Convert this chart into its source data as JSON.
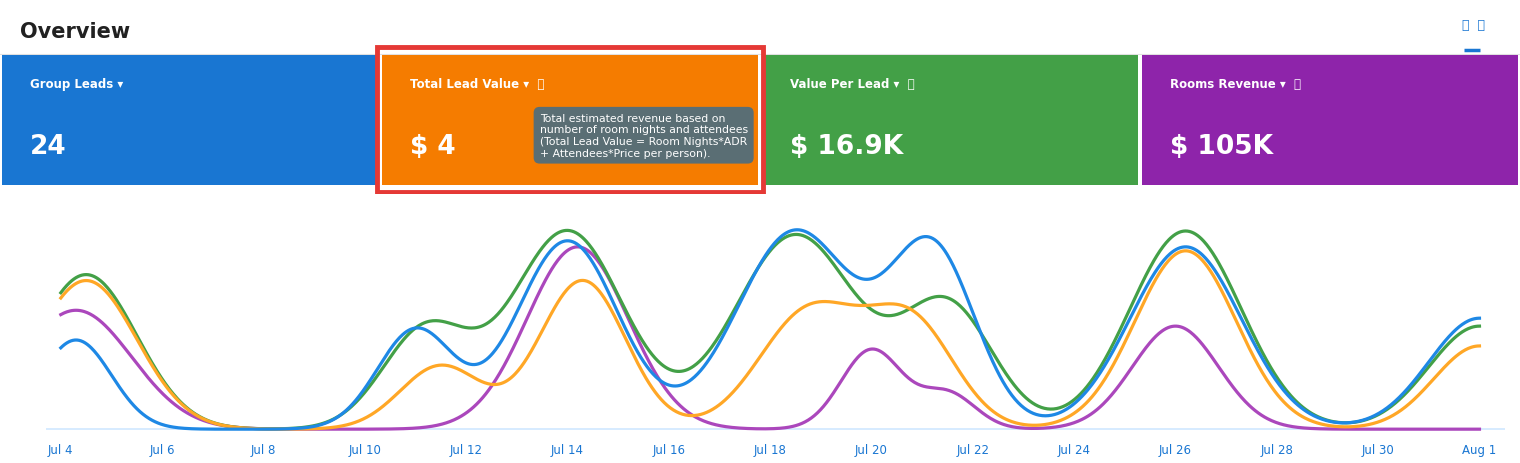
{
  "title": "Overview",
  "background_color": "#ffffff",
  "cards": [
    {
      "label": "Group Leads ▾",
      "value": "24",
      "bg": "#1976D2",
      "text_color": "#ffffff"
    },
    {
      "label": "Total Lead Value ▾  ⓘ",
      "value": "$ 4",
      "bg": "#F57C00",
      "text_color": "#ffffff",
      "highlighted": true
    },
    {
      "label": "Value Per Lead ▾  ⓘ",
      "value": "$ 16.9K",
      "bg": "#43A047",
      "text_color": "#ffffff"
    },
    {
      "label": "Rooms Revenue ▾  ⓘ",
      "value": "$ 105K",
      "bg": "#8E24AA",
      "text_color": "#ffffff"
    }
  ],
  "tooltip": {
    "text": "Total estimated revenue based on\nnumber of room nights and attendees\n(Total Lead Value = Room Nights*ADR\n+ Attendees*Price per person).",
    "bg": "#546E7A",
    "text_color": "#ffffff"
  },
  "x_labels": [
    "Jul 4",
    "Jul 6",
    "Jul 8",
    "Jul 10",
    "Jul 12",
    "Jul 14",
    "Jul 16",
    "Jul 18",
    "Jul 20",
    "Jul 22",
    "Jul 24",
    "Jul 26",
    "Jul 28",
    "Jul 30",
    "Aug 1"
  ],
  "x_positions": [
    0,
    2,
    4,
    6,
    8,
    10,
    12,
    14,
    16,
    18,
    20,
    22,
    24,
    26,
    28
  ],
  "line_colors": [
    "#1E88E5",
    "#FFA726",
    "#43A047",
    "#AB47BC"
  ],
  "chart_bg": "#ffffff",
  "tick_color": "#1976D2",
  "baseline_color": "#CFE8FF"
}
